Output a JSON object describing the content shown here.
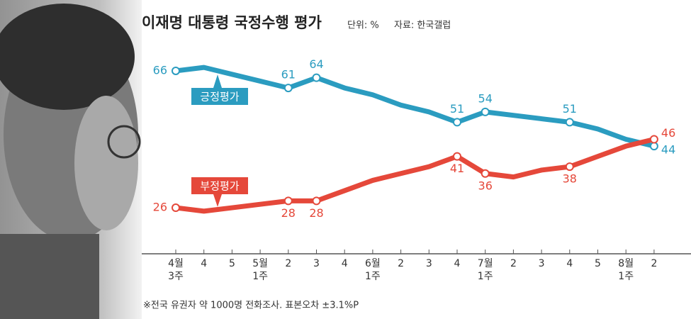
{
  "chart_data": {
    "type": "line",
    "title": "이재명 대통령 국정수행 평가",
    "subtitle": [
      "단위: %",
      "자료: 한국갤럽"
    ],
    "note": "※전국 유권자 약 1000명 전화조사. 표본오차 ±3.1%P",
    "categories": [
      [
        "4월",
        "3주"
      ],
      [
        "4"
      ],
      [
        "5"
      ],
      [
        "5월",
        "1주"
      ],
      [
        "2"
      ],
      [
        "3"
      ],
      [
        "4"
      ],
      [
        "6월",
        "1주"
      ],
      [
        "2"
      ],
      [
        "3"
      ],
      [
        "4"
      ],
      [
        "7월",
        "1주"
      ],
      [
        "2"
      ],
      [
        "3"
      ],
      [
        "4"
      ],
      [
        "5"
      ],
      [
        "8월",
        "1주"
      ],
      [
        "2"
      ]
    ],
    "ylim": [
      20,
      72
    ],
    "series": [
      {
        "name": "긍정평가",
        "color": "#2b9cc0",
        "values": [
          66,
          67,
          65,
          63,
          61,
          64,
          61,
          59,
          56,
          54,
          51,
          54,
          53,
          52,
          51,
          49,
          46,
          44
        ],
        "value_labels": [
          "66",
          null,
          null,
          null,
          "61",
          "64",
          null,
          null,
          null,
          null,
          "51",
          "54",
          null,
          null,
          "51",
          null,
          null,
          "44"
        ]
      },
      {
        "name": "부정평가",
        "color": "#e5483a",
        "values": [
          26,
          25,
          26,
          27,
          28,
          28,
          31,
          34,
          36,
          38,
          41,
          36,
          35,
          37,
          38,
          41,
          44,
          46
        ],
        "value_labels": [
          "26",
          null,
          null,
          null,
          "28",
          "28",
          null,
          null,
          null,
          null,
          "41",
          "36",
          null,
          null,
          "38",
          null,
          null,
          "46"
        ]
      }
    ]
  }
}
